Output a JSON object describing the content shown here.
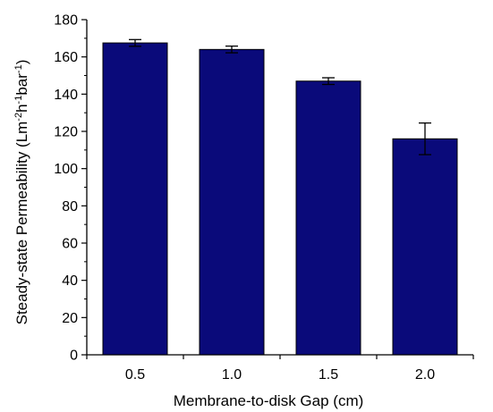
{
  "chart_data": {
    "type": "bar",
    "categories": [
      "0.5",
      "1.0",
      "1.5",
      "2.0"
    ],
    "values": [
      167.5,
      164.0,
      147.0,
      116.0
    ],
    "errors": [
      1.8,
      1.8,
      1.8,
      8.5
    ],
    "title": "",
    "xlabel": "Membrane-to-disk Gap (cm)",
    "ylabel": {
      "prefix": "Steady-state Permeability (Lm",
      "sup1": "-2",
      "mid1": "h",
      "sup2": "-1",
      "mid2": "bar",
      "sup3": "-1",
      "suffix": ")"
    },
    "ylim": [
      0,
      180
    ],
    "yticks": [
      0,
      20,
      40,
      60,
      80,
      100,
      120,
      140,
      160,
      180
    ],
    "grid": false,
    "legend": "none",
    "bar_color": "#0a0a7a",
    "axis_color": "#000000"
  }
}
